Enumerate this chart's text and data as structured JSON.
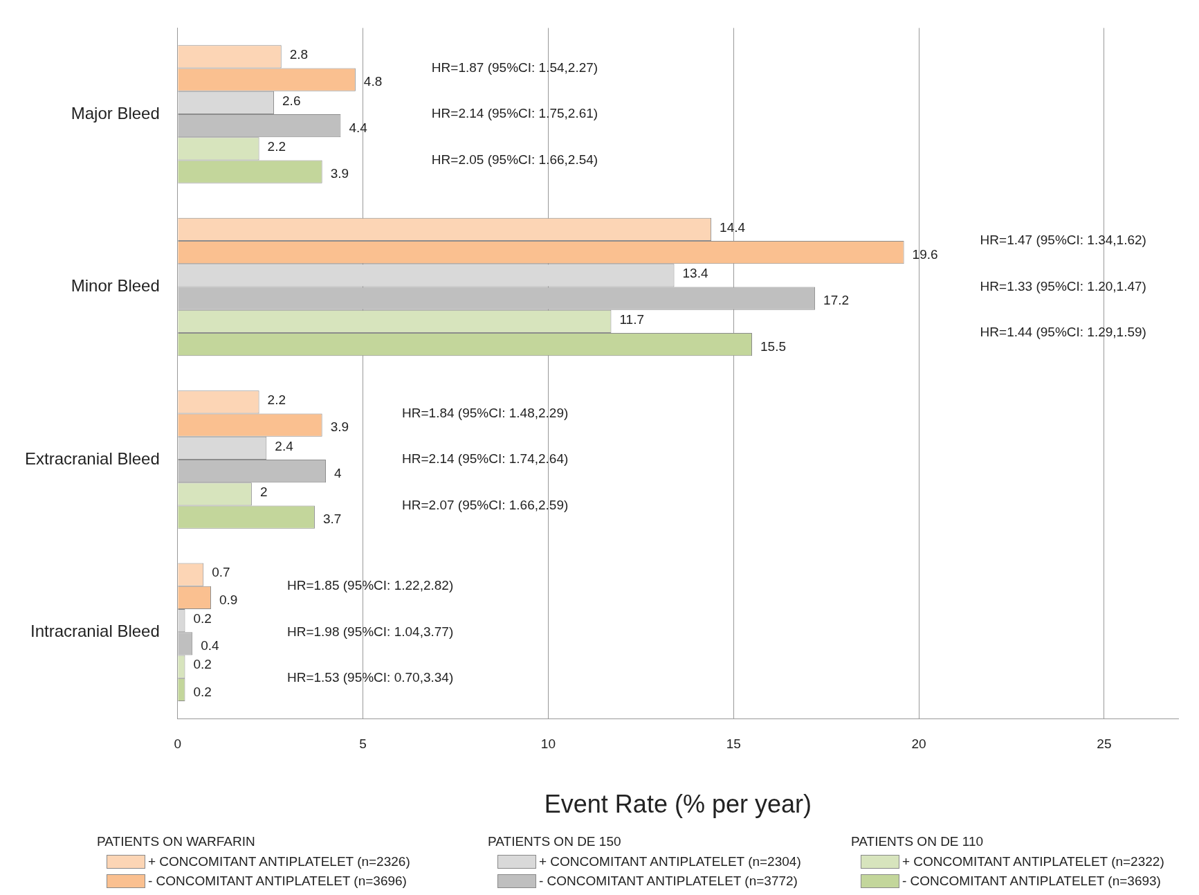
{
  "chart_data": {
    "type": "bar",
    "orientation": "horizontal",
    "xlabel": "Event Rate (% per year)",
    "categories": [
      "Major Bleed",
      "Minor Bleed",
      "Extracranial Bleed",
      "Intracranial Bleed"
    ],
    "series": [
      {
        "name": "+ CONCOMITANT ANTIPLATELET (n=2326)",
        "color": "#fcd5b5",
        "values": [
          2.8,
          14.4,
          2.2,
          0.7
        ]
      },
      {
        "name": "- CONCOMITANT ANTIPLATELET (n=3696)",
        "color": "#fac090",
        "values": [
          4.8,
          19.6,
          3.9,
          0.9
        ]
      },
      {
        "name": "+ CONCOMITANT ANTIPLATELET (n=2304)",
        "color": "#d9d9d9",
        "values": [
          2.6,
          13.4,
          2.4,
          0.2
        ]
      },
      {
        "name": "- CONCOMITANT ANTIPLATELET (n=3772)",
        "color": "#bfbfbf",
        "values": [
          4.4,
          17.2,
          4,
          0.4
        ]
      },
      {
        "name": "+ CONCOMITANT ANTIPLATELET (n=2322)",
        "color": "#d7e4bd",
        "values": [
          2.2,
          11.7,
          2,
          0.2
        ]
      },
      {
        "name": "- CONCOMITANT ANTIPLATELET (n=3693)",
        "color": "#c3d69b",
        "values": [
          3.9,
          15.5,
          3.7,
          0.2
        ]
      }
    ],
    "xlim": [
      0,
      27
    ],
    "xticks": [
      0,
      5,
      10,
      15,
      20,
      25
    ],
    "grid": "x",
    "data_labels": true,
    "legend": "bottom",
    "annotations": [
      "HR=1.87 (95%CI: 1.54,2.27)",
      "HR=2.14 (95%CI: 1.75,2.61)",
      "HR=2.05 (95%CI: 1.66,2.54)",
      "HR=1.47 (95%CI: 1.34,1.62)",
      "HR=1.33 (95%CI: 1.20,1.47)",
      "HR=1.44 (95%CI: 1.29,1.59)",
      "HR=1.84 (95%CI: 1.48,2.29)",
      "HR=2.14 (95%CI: 1.74,2.64)",
      "HR=2.07 (95%CI: 1.66,2.59)",
      "HR=1.85 (95%CI: 1.22,2.82)",
      "HR=1.98 (95%CI: 1.04,3.77)",
      "HR=1.53 (95%CI: 0.70,3.34)",
      "PATIENTS ON WARFARIN",
      "PATIENTS ON DE 150",
      "PATIENTS ON DE 110"
    ]
  }
}
